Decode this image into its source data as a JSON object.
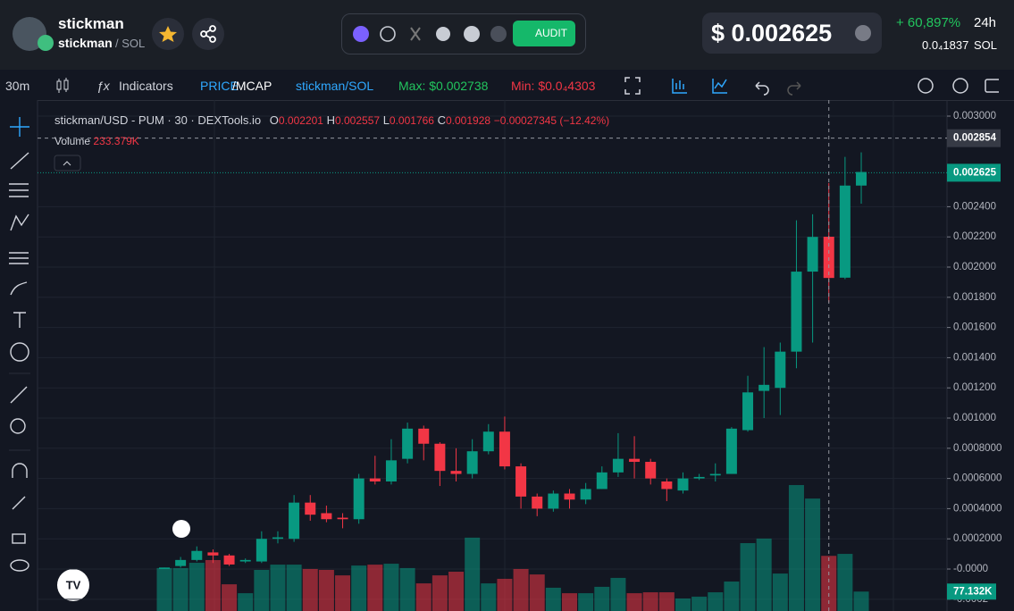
{
  "header": {
    "token": "stickman",
    "pair_base": "stickman",
    "pair_quote": "/ SOL",
    "audit": "AUDIT",
    "price": "$ 0.002625",
    "change": "+ 60,897%",
    "period": "24h",
    "price_sol": "0.0₄1837",
    "sol": "SOL"
  },
  "toolbar": {
    "interval": "30m",
    "indicators": "Indicators",
    "price": "PRICE",
    "mcap": "/MCAP",
    "pair": "stickman/SOL",
    "max": "Max: $0.002738",
    "min": "Min: $0.0₄4303"
  },
  "chart": {
    "type": "candlestick",
    "title": "stickman/USD - PUM · 30 · DEXTools.io",
    "legend": {
      "o_label": "O",
      "o": 0.002201,
      "h_label": "H",
      "h": 0.002557,
      "l_label": "L",
      "l": 0.001766,
      "c_label": "C",
      "c": 0.001928,
      "change": "−0.00027345 (−12.42%)",
      "volume_label": "Volume",
      "volume": "233.379K"
    },
    "open": [
      0.0,
      2e-05,
      6e-05,
      0.00011,
      9e-05,
      5e-05,
      5e-05,
      0.0002,
      0.0002,
      0.00044,
      0.00037,
      0.00034,
      0.00033,
      0.0006,
      0.00058,
      0.00073,
      0.00093,
      0.00083,
      0.00065,
      0.00063,
      0.00078,
      0.00091,
      0.00068,
      0.00048,
      0.0004,
      0.0005,
      0.00046,
      0.00053,
      0.00064,
      0.00073,
      0.00071,
      0.00058,
      0.00052,
      0.0006,
      0.00062,
      0.00063,
      0.00092,
      0.00118,
      0.0012,
      0.00144,
      0.00197,
      0.002201,
      0.00193,
      0.00254
    ],
    "high": [
      1e-05,
      8e-05,
      0.00015,
      0.00013,
      0.0001,
      7e-05,
      0.00025,
      0.00025,
      0.00049,
      0.00049,
      0.00042,
      0.00037,
      0.00063,
      0.00075,
      0.00086,
      0.00097,
      0.00095,
      0.00084,
      0.0008,
      0.00086,
      0.00096,
      0.00101,
      0.0007,
      0.0005,
      0.00052,
      0.00053,
      0.00057,
      0.00068,
      0.0009,
      0.00088,
      0.00073,
      0.0006,
      0.00064,
      0.00063,
      0.0007,
      0.00094,
      0.00128,
      0.00147,
      0.0015,
      0.00231,
      0.00235,
      0.002557,
      0.00273,
      0.00276
    ],
    "low": [
      0.0,
      1e-05,
      5e-05,
      4e-05,
      2e-05,
      4e-05,
      4e-05,
      0.00017,
      0.00018,
      0.00032,
      0.00031,
      0.00027,
      0.0003,
      0.00056,
      0.00056,
      0.0007,
      0.00072,
      0.00055,
      0.00058,
      0.0006,
      0.00076,
      0.00066,
      0.0004,
      0.00035,
      0.00038,
      0.0004,
      0.00043,
      0.00053,
      0.00061,
      0.0006,
      0.00056,
      0.00045,
      0.0005,
      0.00059,
      0.00058,
      0.00063,
      0.00091,
      0.001,
      0.00102,
      0.00133,
      0.0015,
      0.001766,
      0.00192,
      0.00242
    ],
    "close": [
      1e-05,
      6e-05,
      0.00012,
      9e-05,
      3e-05,
      6e-05,
      0.0002,
      0.00021,
      0.00044,
      0.00036,
      0.00033,
      0.00033,
      0.0006,
      0.00058,
      0.00072,
      0.00093,
      0.00083,
      0.00065,
      0.00063,
      0.00078,
      0.00091,
      0.00068,
      0.00048,
      0.0004,
      0.0005,
      0.00046,
      0.00053,
      0.00064,
      0.00073,
      0.00071,
      0.0006,
      0.00053,
      0.0006,
      0.00061,
      0.00063,
      0.00093,
      0.00117,
      0.00122,
      0.00144,
      0.00197,
      0.0022,
      0.001928,
      0.00254,
      0.00263
    ],
    "volume": [
      180,
      180,
      203,
      215,
      109,
      70,
      172,
      195,
      195,
      176,
      172,
      148,
      191,
      195,
      199,
      180,
      113,
      148,
      164,
      313,
      113,
      133,
      176,
      152,
      94,
      70,
      70,
      98,
      137,
      70,
      74,
      74,
      47,
      55,
      74,
      121,
      289,
      309,
      156,
      543,
      484,
      233.379,
      242,
      77.132
    ],
    "ylim": [
      -0.000278,
      0.0031065
    ],
    "volume_lim": [
      0,
      2227
    ],
    "yticks": [
      {
        "value": 0.003,
        "label": "0.003000"
      },
      {
        "value": 0.0024,
        "label": "0.002400"
      },
      {
        "value": 0.0022,
        "label": "0.002200"
      },
      {
        "value": 0.002,
        "label": "0.002000"
      },
      {
        "value": 0.0018,
        "label": "0.001800"
      },
      {
        "value": 0.0016,
        "label": "0.001600"
      },
      {
        "value": 0.0014,
        "label": "0.001400"
      },
      {
        "value": 0.0012,
        "label": "0.001200"
      },
      {
        "value": 0.001,
        "label": "0.001000"
      },
      {
        "value": 0.0008,
        "label": "0.0008000"
      },
      {
        "value": 0.0006,
        "label": "0.0006000"
      },
      {
        "value": 0.0004,
        "label": "0.0004000"
      },
      {
        "value": 0.0002,
        "label": "0.0002000"
      },
      {
        "value": 0,
        "label": "-0.0000"
      },
      {
        "value": -0.0002,
        "label": "-0.0002"
      }
    ],
    "crosshair_price": 0.002854,
    "last_price": 0.002625,
    "last_volume": {
      "value": 77.132,
      "label": "77.132K"
    },
    "up_color": "#089981",
    "down_color": "#f23645",
    "grid": true
  }
}
